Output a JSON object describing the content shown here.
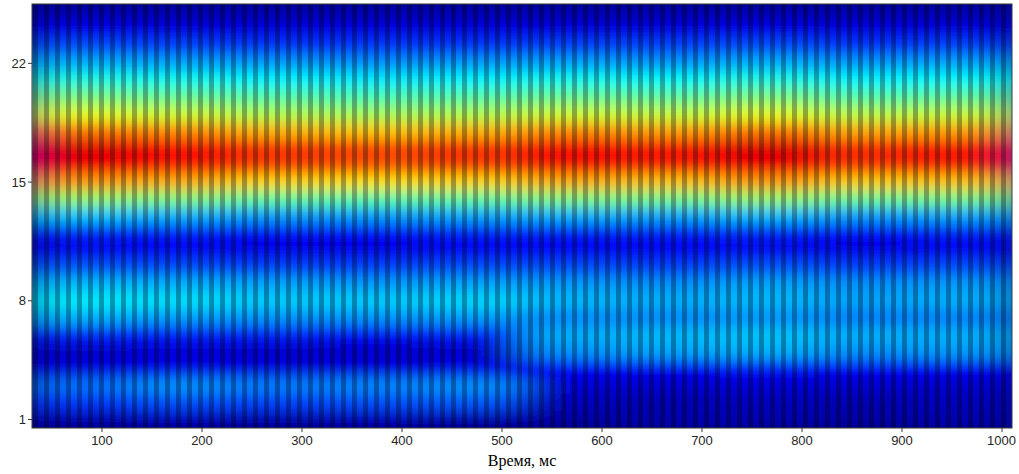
{
  "chart_data": {
    "type": "heatmap",
    "x_label": "Время, мс",
    "x": [
      30,
      128,
      226,
      324,
      422,
      520,
      618,
      716,
      814,
      912,
      1010
    ],
    "y": [
      0.5,
      1.5,
      2.5,
      3.5,
      4.5,
      5.5,
      6.5,
      7.5,
      8.5,
      9.5,
      10.5,
      11.5,
      12.5,
      13.5,
      14.5,
      15.5,
      16.5,
      17.5,
      18.5,
      19.5,
      20.5,
      21.5,
      22.5,
      23.5,
      24.5,
      25.5
    ],
    "cells": [
      [
        0.05,
        0.06,
        0.05,
        0.06,
        0.05,
        0.04,
        0.05,
        0.05,
        0.04,
        0.05
      ],
      [
        0.18,
        0.2,
        0.19,
        0.2,
        0.21,
        0.06,
        0.05,
        0.06,
        0.05,
        0.06
      ],
      [
        0.24,
        0.27,
        0.25,
        0.26,
        0.27,
        0.09,
        0.08,
        0.09,
        0.08,
        0.08
      ],
      [
        0.1,
        0.11,
        0.1,
        0.1,
        0.11,
        0.13,
        0.12,
        0.14,
        0.12,
        0.12
      ],
      [
        0.08,
        0.09,
        0.08,
        0.08,
        0.08,
        0.27,
        0.29,
        0.3,
        0.27,
        0.28
      ],
      [
        0.16,
        0.15,
        0.15,
        0.14,
        0.15,
        0.3,
        0.31,
        0.32,
        0.3,
        0.3
      ],
      [
        0.3,
        0.28,
        0.27,
        0.27,
        0.28,
        0.26,
        0.26,
        0.27,
        0.25,
        0.25
      ],
      [
        0.36,
        0.35,
        0.33,
        0.33,
        0.34,
        0.31,
        0.3,
        0.31,
        0.29,
        0.3
      ],
      [
        0.31,
        0.3,
        0.29,
        0.28,
        0.29,
        0.28,
        0.27,
        0.29,
        0.27,
        0.28
      ],
      [
        0.21,
        0.2,
        0.19,
        0.19,
        0.2,
        0.2,
        0.19,
        0.21,
        0.19,
        0.2
      ],
      [
        0.12,
        0.12,
        0.11,
        0.11,
        0.12,
        0.12,
        0.12,
        0.12,
        0.11,
        0.12
      ],
      [
        0.16,
        0.15,
        0.14,
        0.14,
        0.15,
        0.15,
        0.15,
        0.16,
        0.14,
        0.15
      ],
      [
        0.32,
        0.3,
        0.28,
        0.28,
        0.29,
        0.3,
        0.29,
        0.31,
        0.28,
        0.29
      ],
      [
        0.52,
        0.5,
        0.47,
        0.46,
        0.47,
        0.5,
        0.49,
        0.52,
        0.48,
        0.49
      ],
      [
        0.72,
        0.7,
        0.66,
        0.65,
        0.66,
        0.7,
        0.68,
        0.72,
        0.67,
        0.68
      ],
      [
        0.88,
        0.85,
        0.81,
        0.79,
        0.81,
        0.85,
        0.84,
        0.88,
        0.82,
        0.84
      ],
      [
        0.9,
        0.87,
        0.83,
        0.81,
        0.83,
        0.87,
        0.86,
        0.9,
        0.84,
        0.86
      ],
      [
        0.76,
        0.74,
        0.7,
        0.68,
        0.7,
        0.74,
        0.72,
        0.76,
        0.71,
        0.72
      ],
      [
        0.6,
        0.58,
        0.55,
        0.54,
        0.55,
        0.58,
        0.57,
        0.6,
        0.56,
        0.57
      ],
      [
        0.5,
        0.48,
        0.46,
        0.45,
        0.46,
        0.48,
        0.47,
        0.5,
        0.46,
        0.47
      ],
      [
        0.4,
        0.39,
        0.37,
        0.36,
        0.37,
        0.39,
        0.38,
        0.4,
        0.37,
        0.38
      ],
      [
        0.3,
        0.29,
        0.28,
        0.27,
        0.28,
        0.29,
        0.28,
        0.3,
        0.28,
        0.29
      ],
      [
        0.2,
        0.19,
        0.18,
        0.18,
        0.18,
        0.19,
        0.19,
        0.2,
        0.18,
        0.19
      ],
      [
        0.11,
        0.1,
        0.1,
        0.1,
        0.1,
        0.1,
        0.1,
        0.11,
        0.1,
        0.1
      ],
      [
        0.05,
        0.05,
        0.05,
        0.05,
        0.05,
        0.05,
        0.05,
        0.05,
        0.05,
        0.05
      ]
    ],
    "zlim": [
      0,
      1
    ],
    "xlim": [
      30,
      1010
    ],
    "ylim": [
      0.5,
      25.5
    ],
    "xticks": [
      100,
      200,
      300,
      400,
      500,
      600,
      700,
      800,
      900,
      1000
    ],
    "yticks": [
      1,
      8,
      15,
      22
    ]
  }
}
